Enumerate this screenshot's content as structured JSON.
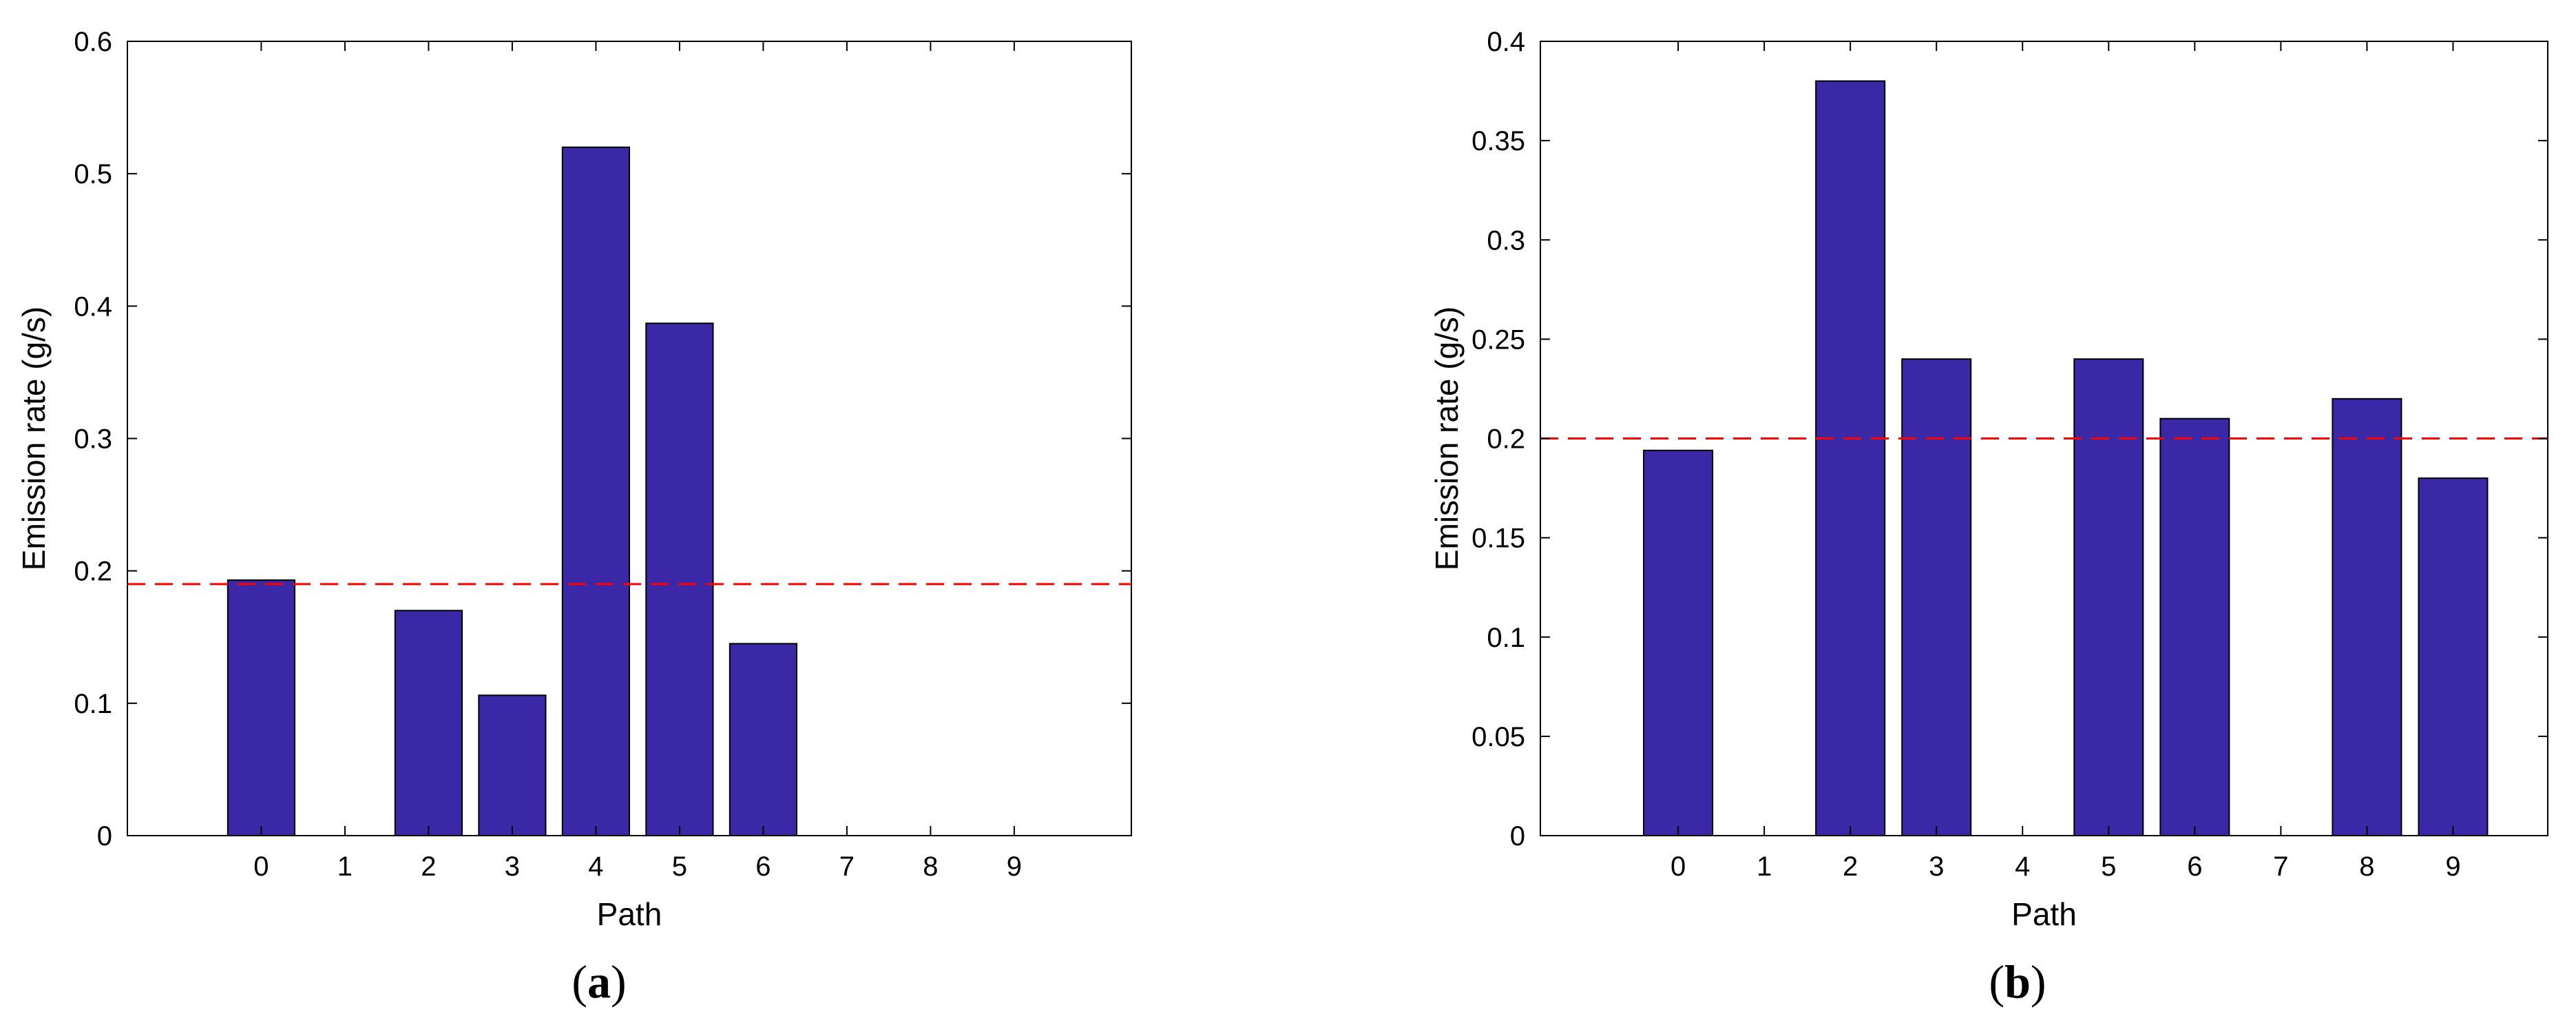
{
  "chart_data": [
    {
      "type": "bar",
      "panel_label": "a",
      "xlabel": "Path",
      "ylabel": "Emission rate (g/s)",
      "categories": [
        "0",
        "1",
        "2",
        "3",
        "4",
        "5",
        "6",
        "7",
        "8",
        "9"
      ],
      "values": [
        0.193,
        0,
        0.17,
        0.106,
        0.52,
        0.387,
        0.145,
        0,
        0,
        0
      ],
      "ylim": [
        0,
        0.6
      ],
      "yticks": [
        "0",
        "0.1",
        "0.2",
        "0.3",
        "0.4",
        "0.5",
        "0.6"
      ],
      "xlim": [
        -1.6,
        10.4
      ],
      "reference_line": {
        "y": 0.19,
        "style": "dashed",
        "color": "#ff0000"
      },
      "bar_color": "#3a28a6",
      "grid": false,
      "legend": "none"
    },
    {
      "type": "bar",
      "panel_label": "b",
      "xlabel": "Path",
      "ylabel": "Emission rate (g/s)",
      "categories": [
        "0",
        "1",
        "2",
        "3",
        "4",
        "5",
        "6",
        "7",
        "8",
        "9"
      ],
      "values": [
        0.194,
        0,
        0.38,
        0.24,
        0,
        0.24,
        0.21,
        0,
        0.22,
        0.18
      ],
      "ylim": [
        0,
        0.4
      ],
      "yticks": [
        "0",
        "0.05",
        "0.1",
        "0.15",
        "0.2",
        "0.25",
        "0.3",
        "0.35",
        "0.4"
      ],
      "xlim": [
        -1.6,
        10.1
      ],
      "reference_line": {
        "y": 0.2,
        "style": "dashed",
        "color": "#ff0000"
      },
      "bar_color": "#3a28a6",
      "grid": false,
      "legend": "none"
    }
  ]
}
